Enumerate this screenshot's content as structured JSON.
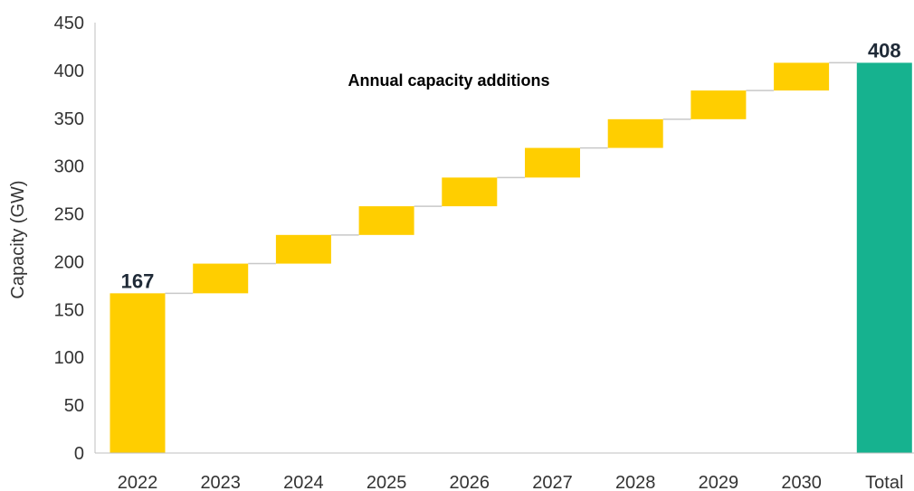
{
  "chart_data": {
    "type": "bar",
    "subtype": "waterfall",
    "categories": [
      "2022",
      "2023",
      "2024",
      "2025",
      "2026",
      "2027",
      "2028",
      "2029",
      "2030",
      "Total"
    ],
    "bars": [
      {
        "category": "2022",
        "start": 0,
        "end": 167,
        "kind": "base",
        "label": "167"
      },
      {
        "category": "2023",
        "start": 167,
        "end": 198,
        "kind": "increment"
      },
      {
        "category": "2024",
        "start": 198,
        "end": 228,
        "kind": "increment"
      },
      {
        "category": "2025",
        "start": 228,
        "end": 258,
        "kind": "increment"
      },
      {
        "category": "2026",
        "start": 258,
        "end": 288,
        "kind": "increment"
      },
      {
        "category": "2027",
        "start": 288,
        "end": 319,
        "kind": "increment"
      },
      {
        "category": "2028",
        "start": 319,
        "end": 349,
        "kind": "increment"
      },
      {
        "category": "2029",
        "start": 349,
        "end": 379,
        "kind": "increment"
      },
      {
        "category": "2030",
        "start": 379,
        "end": 408,
        "kind": "increment"
      },
      {
        "category": "Total",
        "start": 0,
        "end": 408,
        "kind": "total",
        "label": "408"
      }
    ],
    "ylabel": "Capacity (GW)",
    "xlabel": "",
    "ylim": [
      0,
      450
    ],
    "yticks": [
      0,
      50,
      100,
      150,
      200,
      250,
      300,
      350,
      400,
      450
    ],
    "annotation": "Annual capacity additions",
    "grid": false,
    "legend": "none",
    "colors": {
      "base": "#FFCE00",
      "increment": "#FFCE00",
      "total": "#16B28F",
      "connector": "#c8c8c8",
      "axis": "#bfbfbf"
    }
  }
}
